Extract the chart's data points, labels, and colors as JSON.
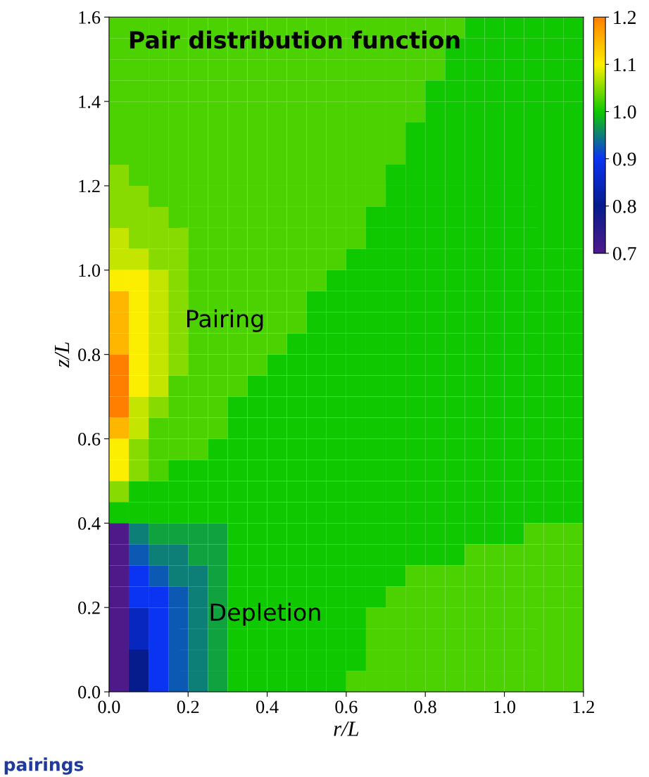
{
  "chart_data": {
    "type": "heatmap",
    "title": "Pair distribution function",
    "xlabel": "r/L",
    "ylabel": "z/L",
    "xlim": [
      0,
      1.2
    ],
    "ylim": [
      0,
      1.6
    ],
    "xticks": [
      {
        "value": 0,
        "label": "0.0"
      },
      0.2,
      0.4,
      0.6,
      0.8,
      {
        "value": 1.0,
        "label": "1.0"
      },
      1.2
    ],
    "yticks": [
      {
        "value": 0,
        "label": "0.0"
      },
      0.2,
      0.4,
      0.6,
      0.8,
      {
        "value": 1.0,
        "label": "1.0"
      },
      1.2,
      1.4,
      1.6
    ],
    "clim": [
      0.7,
      1.2
    ],
    "cticks": [
      0.7,
      0.8,
      0.9,
      {
        "value": 1.0,
        "label": "1.0"
      },
      1.1,
      1.2
    ],
    "colors": [
      "#4e1a8a",
      "#061c8c",
      "#0b33f2",
      "#10c800",
      "#fcee00",
      "#ff8000"
    ],
    "annotations": [
      "Pairing",
      "Depletion",
      "pairings"
    ],
    "cells": [
      [
        1.025,
        1.025,
        1.025,
        1.025,
        1.025,
        1.025,
        1.025,
        1.025,
        1.025,
        1.025,
        1.025,
        1.025,
        1.025,
        1.025,
        1.025,
        1.025,
        1.025,
        1.025,
        1.0,
        1.0,
        1.0,
        1.0,
        1.0,
        1.0
      ],
      [
        1.025,
        1.025,
        1.025,
        1.025,
        1.025,
        1.025,
        1.025,
        1.025,
        1.025,
        1.025,
        1.025,
        1.025,
        1.025,
        1.025,
        1.025,
        1.025,
        1.025,
        1.0,
        1.0,
        1.0,
        1.0,
        1.0,
        1.0,
        1.0
      ],
      [
        1.025,
        1.025,
        1.025,
        1.025,
        1.025,
        1.025,
        1.025,
        1.025,
        1.025,
        1.025,
        1.025,
        1.025,
        1.025,
        1.025,
        1.025,
        1.025,
        1.025,
        1.0,
        1.0,
        1.0,
        1.0,
        1.0,
        1.0,
        1.0
      ],
      [
        1.025,
        1.025,
        1.025,
        1.025,
        1.025,
        1.025,
        1.025,
        1.025,
        1.025,
        1.025,
        1.025,
        1.025,
        1.025,
        1.025,
        1.025,
        1.025,
        1.0,
        1.0,
        1.0,
        1.0,
        1.0,
        1.0,
        1.0,
        1.0
      ],
      [
        1.025,
        1.025,
        1.025,
        1.025,
        1.025,
        1.025,
        1.025,
        1.025,
        1.025,
        1.025,
        1.025,
        1.025,
        1.025,
        1.025,
        1.025,
        1.025,
        1.0,
        1.0,
        1.0,
        1.0,
        1.0,
        1.0,
        1.0,
        1.0
      ],
      [
        1.025,
        1.025,
        1.025,
        1.025,
        1.025,
        1.025,
        1.025,
        1.025,
        1.025,
        1.025,
        1.025,
        1.025,
        1.025,
        1.025,
        1.025,
        1.0,
        1.0,
        1.0,
        1.0,
        1.0,
        1.0,
        1.0,
        1.0,
        1.0
      ],
      [
        1.025,
        1.025,
        1.025,
        1.025,
        1.025,
        1.025,
        1.025,
        1.025,
        1.025,
        1.025,
        1.025,
        1.025,
        1.025,
        1.025,
        1.025,
        1.0,
        1.0,
        1.0,
        1.0,
        1.0,
        1.0,
        1.0,
        1.0,
        1.0
      ],
      [
        1.05,
        1.025,
        1.025,
        1.025,
        1.025,
        1.025,
        1.025,
        1.025,
        1.025,
        1.025,
        1.025,
        1.025,
        1.025,
        1.025,
        1.0,
        1.0,
        1.0,
        1.0,
        1.0,
        1.0,
        1.0,
        1.0,
        1.0,
        1.0
      ],
      [
        1.05,
        1.05,
        1.025,
        1.025,
        1.025,
        1.025,
        1.025,
        1.025,
        1.025,
        1.025,
        1.025,
        1.025,
        1.025,
        1.025,
        1.0,
        1.0,
        1.0,
        1.0,
        1.0,
        1.0,
        1.0,
        1.0,
        1.0,
        1.0
      ],
      [
        1.05,
        1.05,
        1.05,
        1.025,
        1.025,
        1.025,
        1.025,
        1.025,
        1.025,
        1.025,
        1.025,
        1.025,
        1.025,
        1.0,
        1.0,
        1.0,
        1.0,
        1.0,
        1.0,
        1.0,
        1.0,
        1.0,
        1.0,
        1.0
      ],
      [
        1.075,
        1.05,
        1.05,
        1.05,
        1.025,
        1.025,
        1.025,
        1.025,
        1.025,
        1.025,
        1.025,
        1.025,
        1.025,
        1.0,
        1.0,
        1.0,
        1.0,
        1.0,
        1.0,
        1.0,
        1.0,
        1.0,
        1.0,
        1.0
      ],
      [
        1.075,
        1.075,
        1.05,
        1.05,
        1.025,
        1.025,
        1.025,
        1.025,
        1.025,
        1.025,
        1.025,
        1.025,
        1.0,
        1.0,
        1.0,
        1.0,
        1.0,
        1.0,
        1.0,
        1.0,
        1.0,
        1.0,
        1.0,
        1.0
      ],
      [
        1.1,
        1.1,
        1.075,
        1.05,
        1.025,
        1.025,
        1.025,
        1.025,
        1.025,
        1.025,
        1.025,
        1.0,
        1.0,
        1.0,
        1.0,
        1.0,
        1.0,
        1.0,
        1.0,
        1.0,
        1.0,
        1.0,
        1.0,
        1.0
      ],
      [
        1.15,
        1.1,
        1.075,
        1.05,
        1.025,
        1.025,
        1.025,
        1.025,
        1.025,
        1.025,
        1.0,
        1.0,
        1.0,
        1.0,
        1.0,
        1.0,
        1.0,
        1.0,
        1.0,
        1.0,
        1.0,
        1.0,
        1.0,
        1.0
      ],
      [
        1.15,
        1.1,
        1.075,
        1.05,
        1.025,
        1.025,
        1.025,
        1.025,
        1.025,
        1.025,
        1.0,
        1.0,
        1.0,
        1.0,
        1.0,
        1.0,
        1.0,
        1.0,
        1.0,
        1.0,
        1.0,
        1.0,
        1.0,
        1.0
      ],
      [
        1.15,
        1.1,
        1.075,
        1.05,
        1.025,
        1.025,
        1.025,
        1.025,
        1.025,
        1.0,
        1.0,
        1.0,
        1.0,
        1.0,
        1.0,
        1.0,
        1.0,
        1.0,
        1.0,
        1.0,
        1.0,
        1.0,
        1.0,
        1.0
      ],
      [
        1.2,
        1.1,
        1.075,
        1.05,
        1.025,
        1.025,
        1.025,
        1.025,
        1.0,
        1.0,
        1.0,
        1.0,
        1.0,
        1.0,
        1.0,
        1.0,
        1.0,
        1.0,
        1.0,
        1.0,
        1.0,
        1.0,
        1.0,
        1.0
      ],
      [
        1.2,
        1.1,
        1.075,
        1.025,
        1.025,
        1.025,
        1.025,
        1.0,
        1.0,
        1.0,
        1.0,
        1.0,
        1.0,
        1.0,
        1.0,
        1.0,
        1.0,
        1.0,
        1.0,
        1.0,
        1.0,
        1.0,
        1.0,
        1.0
      ],
      [
        1.2,
        1.075,
        1.05,
        1.025,
        1.025,
        1.025,
        1.0,
        1.0,
        1.0,
        1.0,
        1.0,
        1.0,
        1.0,
        1.0,
        1.0,
        1.0,
        1.0,
        1.0,
        1.0,
        1.0,
        1.0,
        1.0,
        1.0,
        1.0
      ],
      [
        1.15,
        1.075,
        1.025,
        1.025,
        1.025,
        1.025,
        1.0,
        1.0,
        1.0,
        1.0,
        1.0,
        1.0,
        1.0,
        1.0,
        1.0,
        1.0,
        1.0,
        1.0,
        1.0,
        1.0,
        1.0,
        1.0,
        1.0,
        1.0
      ],
      [
        1.1,
        1.05,
        1.025,
        1.025,
        1.025,
        1.0,
        1.0,
        1.0,
        1.0,
        1.0,
        1.0,
        1.0,
        1.0,
        1.0,
        1.0,
        1.0,
        1.0,
        1.0,
        1.0,
        1.0,
        1.0,
        1.0,
        1.0,
        1.0
      ],
      [
        1.1,
        1.05,
        1.025,
        1.0,
        1.0,
        1.0,
        1.0,
        1.0,
        1.0,
        1.0,
        1.0,
        1.0,
        1.0,
        1.0,
        1.0,
        1.0,
        1.0,
        1.0,
        1.0,
        1.0,
        1.0,
        1.0,
        1.0,
        1.0
      ],
      [
        1.05,
        1.0,
        1.0,
        1.0,
        1.0,
        1.0,
        1.0,
        1.0,
        1.0,
        1.0,
        1.0,
        1.0,
        1.0,
        1.0,
        1.0,
        1.0,
        1.0,
        1.0,
        1.0,
        1.0,
        1.0,
        1.0,
        1.0,
        1.0
      ],
      [
        1.0,
        1.0,
        1.0,
        1.0,
        1.0,
        1.0,
        1.0,
        1.0,
        1.0,
        1.0,
        1.0,
        1.0,
        1.0,
        1.0,
        1.0,
        1.0,
        1.0,
        1.0,
        1.0,
        1.0,
        1.0,
        1.0,
        1.0,
        1.0
      ],
      [
        0.7,
        0.95,
        0.975,
        0.975,
        0.975,
        0.975,
        1.0,
        1.0,
        1.0,
        1.0,
        1.0,
        1.0,
        1.0,
        1.0,
        1.0,
        1.0,
        1.0,
        1.0,
        1.0,
        1.0,
        1.0,
        1.025,
        1.025,
        1.025
      ],
      [
        0.7,
        0.925,
        0.95,
        0.95,
        0.975,
        0.975,
        1.0,
        1.0,
        1.0,
        1.0,
        1.0,
        1.0,
        1.0,
        1.0,
        1.0,
        1.0,
        1.0,
        1.0,
        1.025,
        1.025,
        1.025,
        1.025,
        1.025,
        1.025
      ],
      [
        0.7,
        0.9,
        0.925,
        0.95,
        0.95,
        0.975,
        1.0,
        1.0,
        1.0,
        1.0,
        1.0,
        1.0,
        1.0,
        1.0,
        1.0,
        1.025,
        1.025,
        1.025,
        1.025,
        1.025,
        1.025,
        1.025,
        1.025,
        1.025
      ],
      [
        0.7,
        0.9,
        0.9,
        0.925,
        0.95,
        0.975,
        1.0,
        1.0,
        1.0,
        1.0,
        1.0,
        1.0,
        1.0,
        1.0,
        1.025,
        1.025,
        1.025,
        1.025,
        1.025,
        1.025,
        1.025,
        1.025,
        1.025,
        1.025
      ],
      [
        0.7,
        0.85,
        0.9,
        0.925,
        0.95,
        0.975,
        1.0,
        1.0,
        1.0,
        1.0,
        1.0,
        1.0,
        1.0,
        1.025,
        1.025,
        1.025,
        1.025,
        1.025,
        1.025,
        1.025,
        1.025,
        1.025,
        1.025,
        1.025
      ],
      [
        0.7,
        0.85,
        0.9,
        0.925,
        0.95,
        0.975,
        1.0,
        1.0,
        1.0,
        1.0,
        1.0,
        1.0,
        1.0,
        1.025,
        1.025,
        1.025,
        1.025,
        1.025,
        1.025,
        1.025,
        1.025,
        1.025,
        1.025,
        1.025
      ],
      [
        0.7,
        0.8,
        0.9,
        0.925,
        0.95,
        0.975,
        1.0,
        1.0,
        1.0,
        1.0,
        1.0,
        1.0,
        1.0,
        1.025,
        1.025,
        1.025,
        1.025,
        1.025,
        1.025,
        1.025,
        1.025,
        1.025,
        1.025,
        1.025
      ],
      [
        0.7,
        0.8,
        0.9,
        0.925,
        0.95,
        0.975,
        1.0,
        1.0,
        1.0,
        1.0,
        1.0,
        1.0,
        1.025,
        1.025,
        1.025,
        1.025,
        1.025,
        1.025,
        1.025,
        1.025,
        1.025,
        1.025,
        1.025,
        1.025
      ]
    ]
  }
}
